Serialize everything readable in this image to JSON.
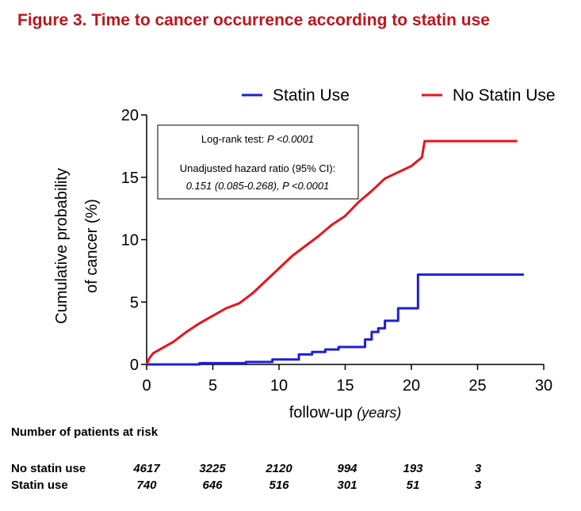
{
  "figure_title": "Figure 3. Time to cancer occurrence according to statin use",
  "chart_data": {
    "type": "line",
    "title": "",
    "xlabel_main": "follow-up ",
    "xlabel_unit": "(years)",
    "ylabel_line1": "Cumulative probability",
    "ylabel_line2": "of cancer (%)",
    "xlim": [
      0,
      30
    ],
    "ylim": [
      0,
      20
    ],
    "xticks": [
      0,
      5,
      10,
      15,
      20,
      25,
      30
    ],
    "yticks": [
      0,
      5,
      10,
      15,
      20
    ],
    "grid": false,
    "legend_position": "top",
    "series": [
      {
        "name": "Statin Use",
        "color": "#1f1fd6",
        "step": true,
        "points": [
          [
            0,
            0
          ],
          [
            4,
            0.1
          ],
          [
            7.5,
            0.2
          ],
          [
            9.5,
            0.4
          ],
          [
            11.5,
            0.8
          ],
          [
            12.5,
            1.0
          ],
          [
            13.5,
            1.2
          ],
          [
            14.5,
            1.4
          ],
          [
            16.5,
            2.0
          ],
          [
            17,
            2.6
          ],
          [
            17.5,
            2.9
          ],
          [
            18,
            3.5
          ],
          [
            19,
            4.5
          ],
          [
            20.5,
            7.2
          ],
          [
            28.5,
            7.2
          ]
        ]
      },
      {
        "name": "No Statin Use",
        "color": "#e8141c",
        "step": false,
        "points": [
          [
            0,
            0
          ],
          [
            0.2,
            0.5
          ],
          [
            0.5,
            0.9
          ],
          [
            1,
            1.2
          ],
          [
            2,
            1.8
          ],
          [
            3,
            2.6
          ],
          [
            4,
            3.3
          ],
          [
            5,
            3.9
          ],
          [
            6,
            4.5
          ],
          [
            7,
            4.9
          ],
          [
            8,
            5.7
          ],
          [
            9,
            6.7
          ],
          [
            10,
            7.7
          ],
          [
            11,
            8.7
          ],
          [
            12,
            9.5
          ],
          [
            13,
            10.3
          ],
          [
            14,
            11.2
          ],
          [
            15,
            11.9
          ],
          [
            16,
            13.0
          ],
          [
            17,
            13.9
          ],
          [
            18,
            14.9
          ],
          [
            19,
            15.4
          ],
          [
            20,
            15.9
          ],
          [
            20.8,
            16.6
          ],
          [
            21,
            17.9
          ],
          [
            28,
            17.9
          ]
        ]
      }
    ],
    "annotation": {
      "line1_text": "Log-rank test: ",
      "line1_italic": "P <0.0001",
      "line2": "Unadjusted hazard ratio (95% CI):",
      "line3": "0.151 (0.085-0.268), P <0.0001"
    }
  },
  "risk_table": {
    "heading": "Number of patients at risk",
    "rows": [
      {
        "label": "No statin use",
        "values": [
          "4617",
          "3225",
          "2120",
          "994",
          "193",
          "3"
        ]
      },
      {
        "label": "Statin use",
        "values": [
          "740",
          "646",
          "516",
          "301",
          "51",
          "3"
        ]
      }
    ]
  }
}
